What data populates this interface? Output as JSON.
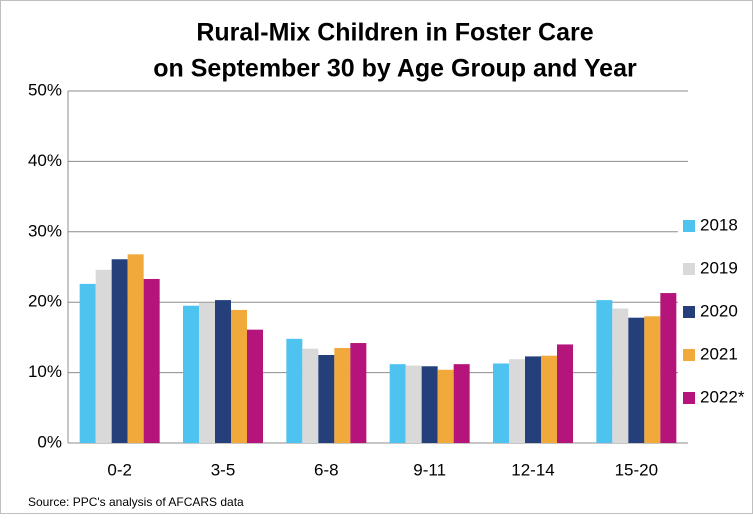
{
  "chart_data": {
    "type": "bar",
    "title": [
      "Rural-Mix Children in Foster Care",
      "on September 30 by Age Group and Year"
    ],
    "source": "Source: PPC's analysis of AFCARS data",
    "categories": [
      "0-2",
      "3-5",
      "6-8",
      "9-11",
      "12-14",
      "15-20"
    ],
    "series": [
      {
        "name": "2018",
        "color": "#4fc3f0",
        "values": [
          22.6,
          19.5,
          14.8,
          11.2,
          11.3,
          20.3
        ]
      },
      {
        "name": "2019",
        "color": "#d9d9d9",
        "values": [
          24.6,
          19.9,
          13.4,
          11.0,
          11.9,
          19.1
        ]
      },
      {
        "name": "2020",
        "color": "#243f7a",
        "values": [
          26.1,
          20.3,
          12.5,
          10.9,
          12.3,
          17.8
        ]
      },
      {
        "name": "2021",
        "color": "#f0a93a",
        "values": [
          26.8,
          18.9,
          13.5,
          10.4,
          12.4,
          18.0
        ]
      },
      {
        "name": "2022*",
        "color": "#b5157b",
        "values": [
          23.3,
          16.1,
          14.2,
          11.2,
          14.0,
          21.3
        ]
      }
    ],
    "ylim": [
      0,
      50
    ],
    "yticks": [
      {
        "value": 0,
        "label": "0%"
      },
      {
        "value": 10,
        "label": "10%"
      },
      {
        "value": 20,
        "label": "20%"
      },
      {
        "value": 30,
        "label": "30%"
      },
      {
        "value": 40,
        "label": "40%"
      },
      {
        "value": 50,
        "label": "50%"
      }
    ],
    "grid": true,
    "legend": "right"
  }
}
